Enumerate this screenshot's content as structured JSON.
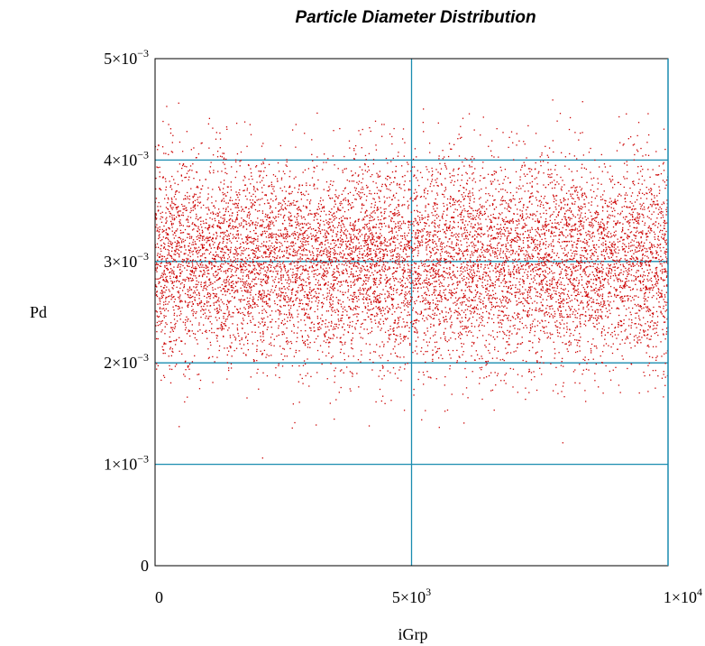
{
  "chart_data": {
    "type": "scatter",
    "title": "Particle Diameter Distribution",
    "xlabel": "iGrp",
    "ylabel": "Pd",
    "xlim": [
      0,
      10000
    ],
    "ylim": [
      0,
      0.005
    ],
    "grid": true,
    "legend": "none",
    "x_ticks": [
      {
        "value": 0,
        "mantissa": "0",
        "exp": ""
      },
      {
        "value": 5000,
        "mantissa": "5×10",
        "exp": "3"
      },
      {
        "value": 10000,
        "mantissa": "1×10",
        "exp": "4"
      }
    ],
    "y_ticks": [
      {
        "value": 0,
        "mantissa": "0",
        "exp": ""
      },
      {
        "value": 0.001,
        "mantissa": "1×10",
        "exp": "−3"
      },
      {
        "value": 0.002,
        "mantissa": "2×10",
        "exp": "−3"
      },
      {
        "value": 0.003,
        "mantissa": "3×10",
        "exp": "−3"
      },
      {
        "value": 0.004,
        "mantissa": "4×10",
        "exp": "−3"
      },
      {
        "value": 0.005,
        "mantissa": "5×10",
        "exp": "−3"
      }
    ],
    "grid_values": {
      "x": [
        5000
      ],
      "y": [
        0.001,
        0.002,
        0.003,
        0.004
      ]
    },
    "series": [
      {
        "point_count": 10000,
        "x_range": [
          0,
          10000
        ],
        "y_mean": 0.003,
        "y_std": 0.0005,
        "y_min": 0.0009,
        "y_max": 0.0046,
        "color": "#cc0000"
      }
    ],
    "colors": {
      "points": "#cc0000",
      "grid": "#1a8cb0",
      "frame": "#000000"
    }
  }
}
